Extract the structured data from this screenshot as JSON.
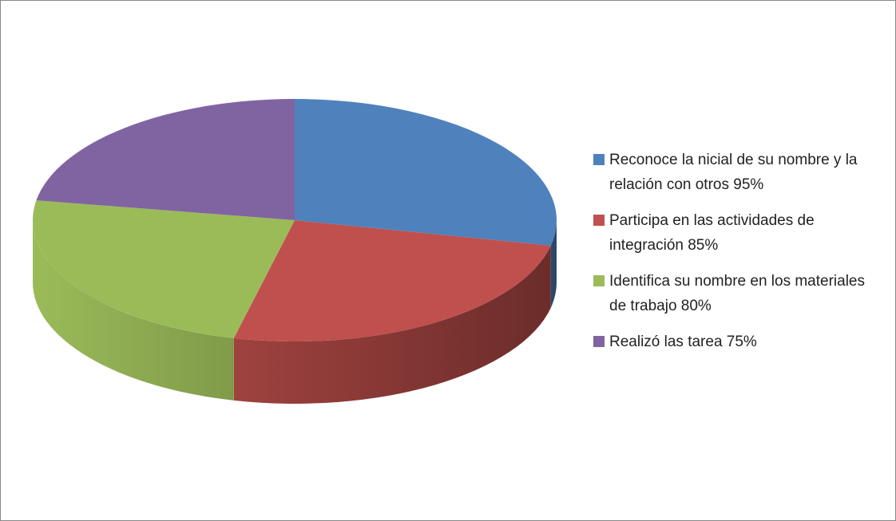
{
  "chart_data": {
    "type": "pie",
    "categories": [
      "Reconoce la nicial de su nombre y la relación con otros 95%",
      "Participa en las actividades de integración 85%",
      "Identifica su nombre en los materiales de trabajo 80%",
      "Realizó las tarea 75%"
    ],
    "values": [
      95,
      85,
      80,
      75
    ],
    "colors": [
      "#4f81bd",
      "#c0504d",
      "#9bbb59",
      "#8064a2"
    ],
    "legend": "right"
  }
}
